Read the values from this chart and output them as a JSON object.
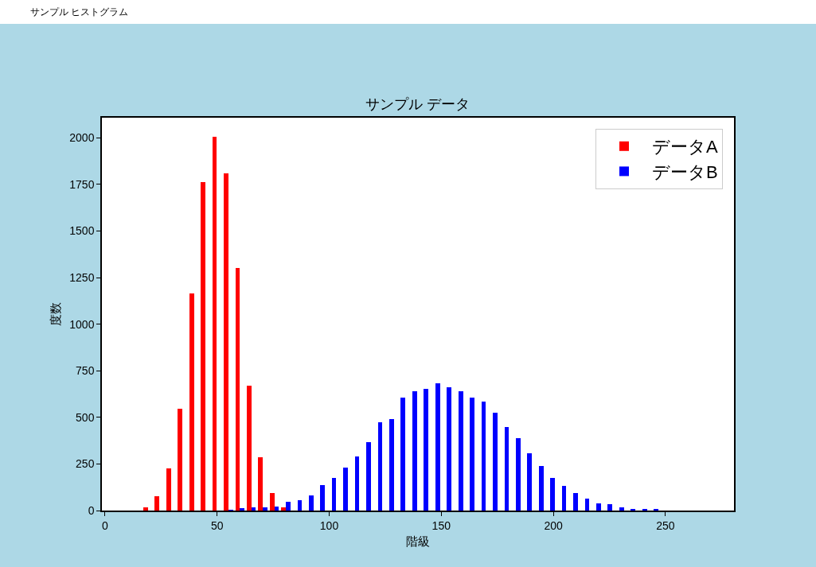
{
  "chart_data": {
    "type": "histogram",
    "title": "サンプル データ",
    "xlabel": "階級",
    "ylabel": "度数",
    "annotations": [
      "サンプル ヒストグラム"
    ],
    "bins": [
      11.4,
      16.5,
      21.7,
      26.8,
      31.9,
      37.1,
      42.2,
      47.3,
      52.4,
      57.6,
      62.7,
      67.8,
      73.0,
      78.1,
      83.2,
      88.4,
      93.5,
      98.6,
      103.7,
      108.9,
      114.0,
      119.1,
      124.3,
      129.4,
      134.5,
      139.7,
      144.8,
      149.9,
      155.0,
      160.2,
      165.3,
      170.4,
      175.6,
      180.7,
      185.8,
      191.0,
      196.1,
      201.2,
      206.3,
      211.5,
      216.6,
      221.7,
      226.9,
      232.0,
      237.1,
      242.3,
      247.4,
      252.5,
      257.6,
      262.8,
      267.9
    ],
    "series": [
      {
        "name": "データA",
        "color": "#ff0000",
        "values": [
          0,
          19,
          78,
          228,
          545,
          1165,
          1762,
          2007,
          1810,
          1302,
          668,
          284,
          92,
          18,
          0,
          0,
          0,
          0,
          0,
          0,
          0,
          0,
          0,
          0,
          0,
          0,
          0,
          0,
          0,
          0,
          0,
          0,
          0,
          0,
          0,
          0,
          0,
          0,
          0,
          0,
          0,
          0,
          0,
          0,
          0,
          0,
          0,
          0,
          0,
          0
        ]
      },
      {
        "name": "データB",
        "color": "#0000ff",
        "values": [
          0,
          0,
          0,
          0,
          0,
          0,
          0,
          0,
          4,
          13,
          18,
          18,
          21,
          46,
          57,
          83,
          137,
          173,
          230,
          290,
          369,
          472,
          491,
          605,
          639,
          652,
          682,
          663,
          640,
          605,
          586,
          524,
          447,
          387,
          307,
          241,
          173,
          134,
          96,
          66,
          37,
          34,
          19,
          10,
          7,
          7,
          0,
          0,
          0,
          0
        ]
      }
    ],
    "xlim": [
      -1.4,
      280.6
    ],
    "ylim": [
      0,
      2108
    ],
    "xticks": [
      0,
      50,
      100,
      150,
      200,
      250
    ],
    "yticks": [
      0,
      250,
      500,
      750,
      1000,
      1250,
      1500,
      1750,
      2000
    ],
    "legend": "top right"
  }
}
